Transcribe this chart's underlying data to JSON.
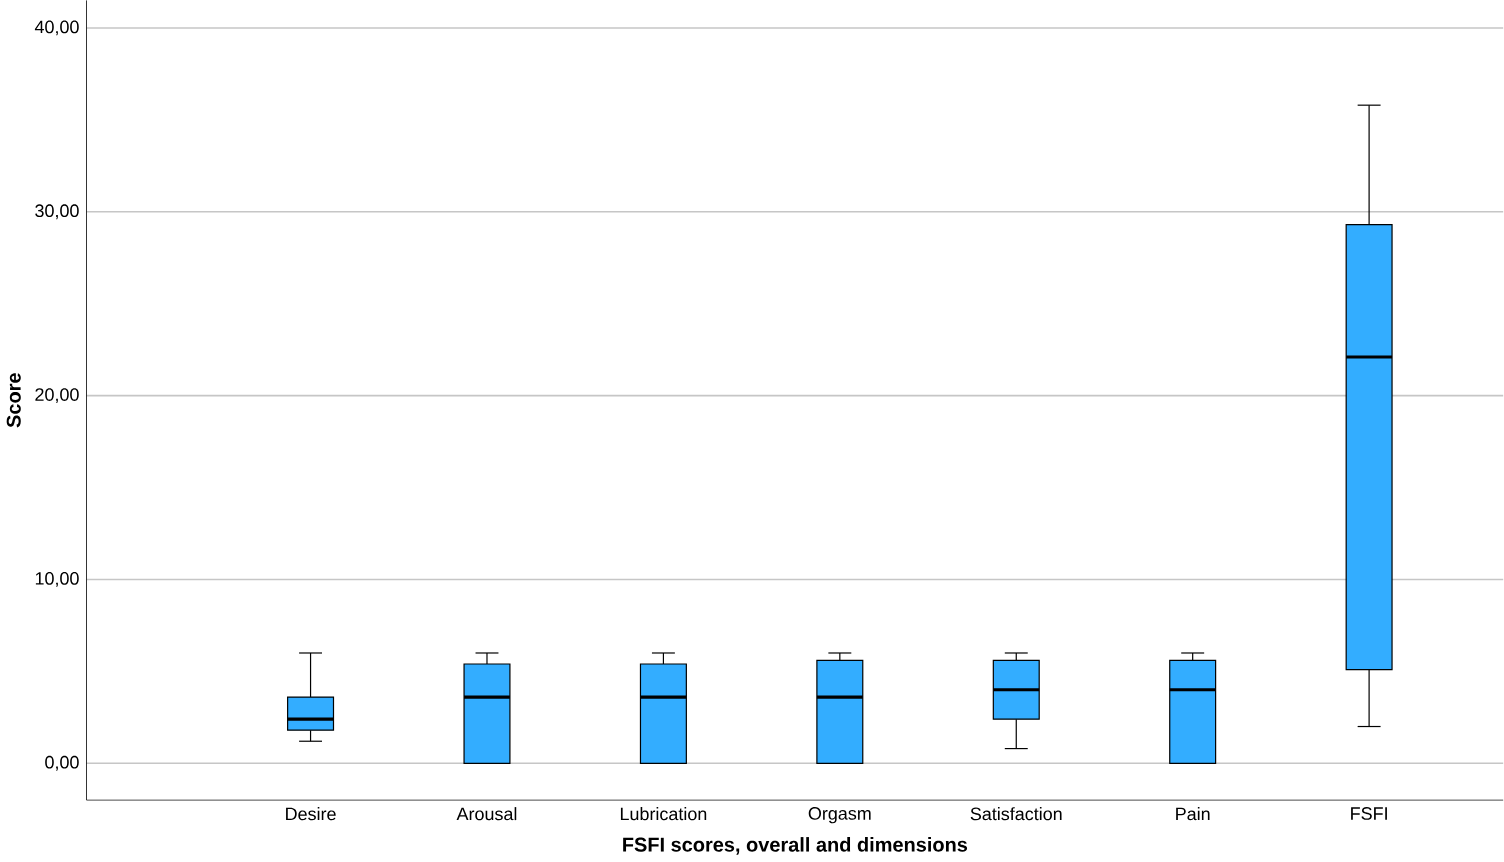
{
  "chart_data": {
    "type": "box",
    "xlabel": "FSFI scores, overall and dimensions",
    "ylabel": "Score",
    "categories": [
      "Desire",
      "Arousal",
      "Lubrication",
      "Orgasm",
      "Satisfaction",
      "Pain",
      "FSFI"
    ],
    "color": "#33adff",
    "boxes": [
      {
        "low": 1.2,
        "q1": 1.8,
        "median": 2.4,
        "q3": 3.6,
        "high": 6.0
      },
      {
        "low": 0,
        "q1": 0,
        "median": 3.6,
        "q3": 5.4,
        "high": 6.0
      },
      {
        "low": 0,
        "q1": 0,
        "median": 3.6,
        "q3": 5.4,
        "high": 6.0
      },
      {
        "low": 0,
        "q1": 0,
        "median": 3.6,
        "q3": 5.6,
        "high": 6.0
      },
      {
        "low": 0.8,
        "q1": 2.4,
        "median": 4.0,
        "q3": 5.6,
        "high": 6.0
      },
      {
        "low": 0,
        "q1": 0,
        "median": 4.0,
        "q3": 5.6,
        "high": 6.0
      },
      {
        "low": 2.0,
        "q1": 5.1,
        "median": 22.1,
        "q3": 29.3,
        "high": 35.8
      }
    ],
    "ylim": [
      -2,
      41.5
    ],
    "yticks": [
      {
        "value": 0,
        "label": "0,00"
      },
      {
        "value": 10,
        "label": "10,00"
      },
      {
        "value": 20,
        "label": "20,00"
      },
      {
        "value": 30,
        "label": "30,00"
      },
      {
        "value": 40,
        "label": "40,00"
      }
    ],
    "grid": "y"
  }
}
